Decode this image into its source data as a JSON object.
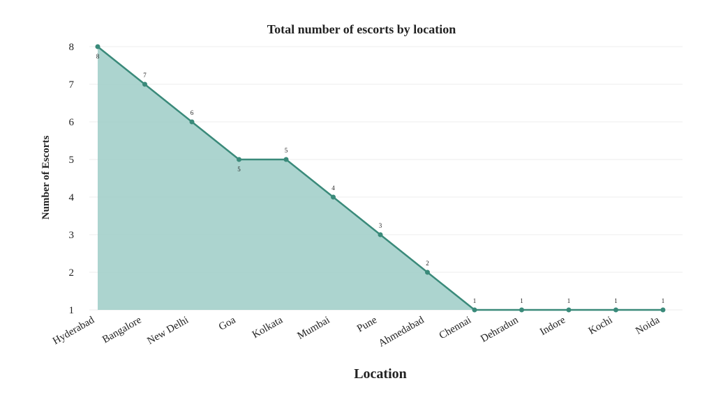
{
  "chart_data": {
    "type": "area",
    "title": "Total number of escorts by location",
    "xlabel": "Location",
    "ylabel": "Number of Escorts",
    "categories": [
      "Hyderabad",
      "Bangalore",
      "New Delhi",
      "Goa",
      "Kolkata",
      "Mumbai",
      "Pune",
      "Ahmedabad",
      "Chennai",
      "Dehradun",
      "Indore",
      "Kochi",
      "Noida"
    ],
    "series": [
      {
        "name": "Number of Escorts",
        "values": [
          8,
          7,
          6,
          5,
          5,
          4,
          3,
          2,
          1,
          1,
          1,
          1,
          1
        ]
      }
    ],
    "data_labels": [
      "8",
      "7",
      "6",
      "5",
      "5",
      "4",
      "3",
      "2",
      "1",
      "1",
      "1",
      "1",
      "1"
    ],
    "label_positions": [
      "below",
      "above",
      "above",
      "below",
      "above",
      "above",
      "above",
      "above",
      "above",
      "above",
      "above",
      "above",
      "above"
    ],
    "ylim": [
      1,
      8
    ],
    "yticks": [
      1,
      2,
      3,
      4,
      5,
      6,
      7,
      8
    ],
    "grid": true,
    "colors": {
      "line": "#3a8a7a",
      "fill": "#9eccc7",
      "grid": "#eeeeee"
    }
  }
}
